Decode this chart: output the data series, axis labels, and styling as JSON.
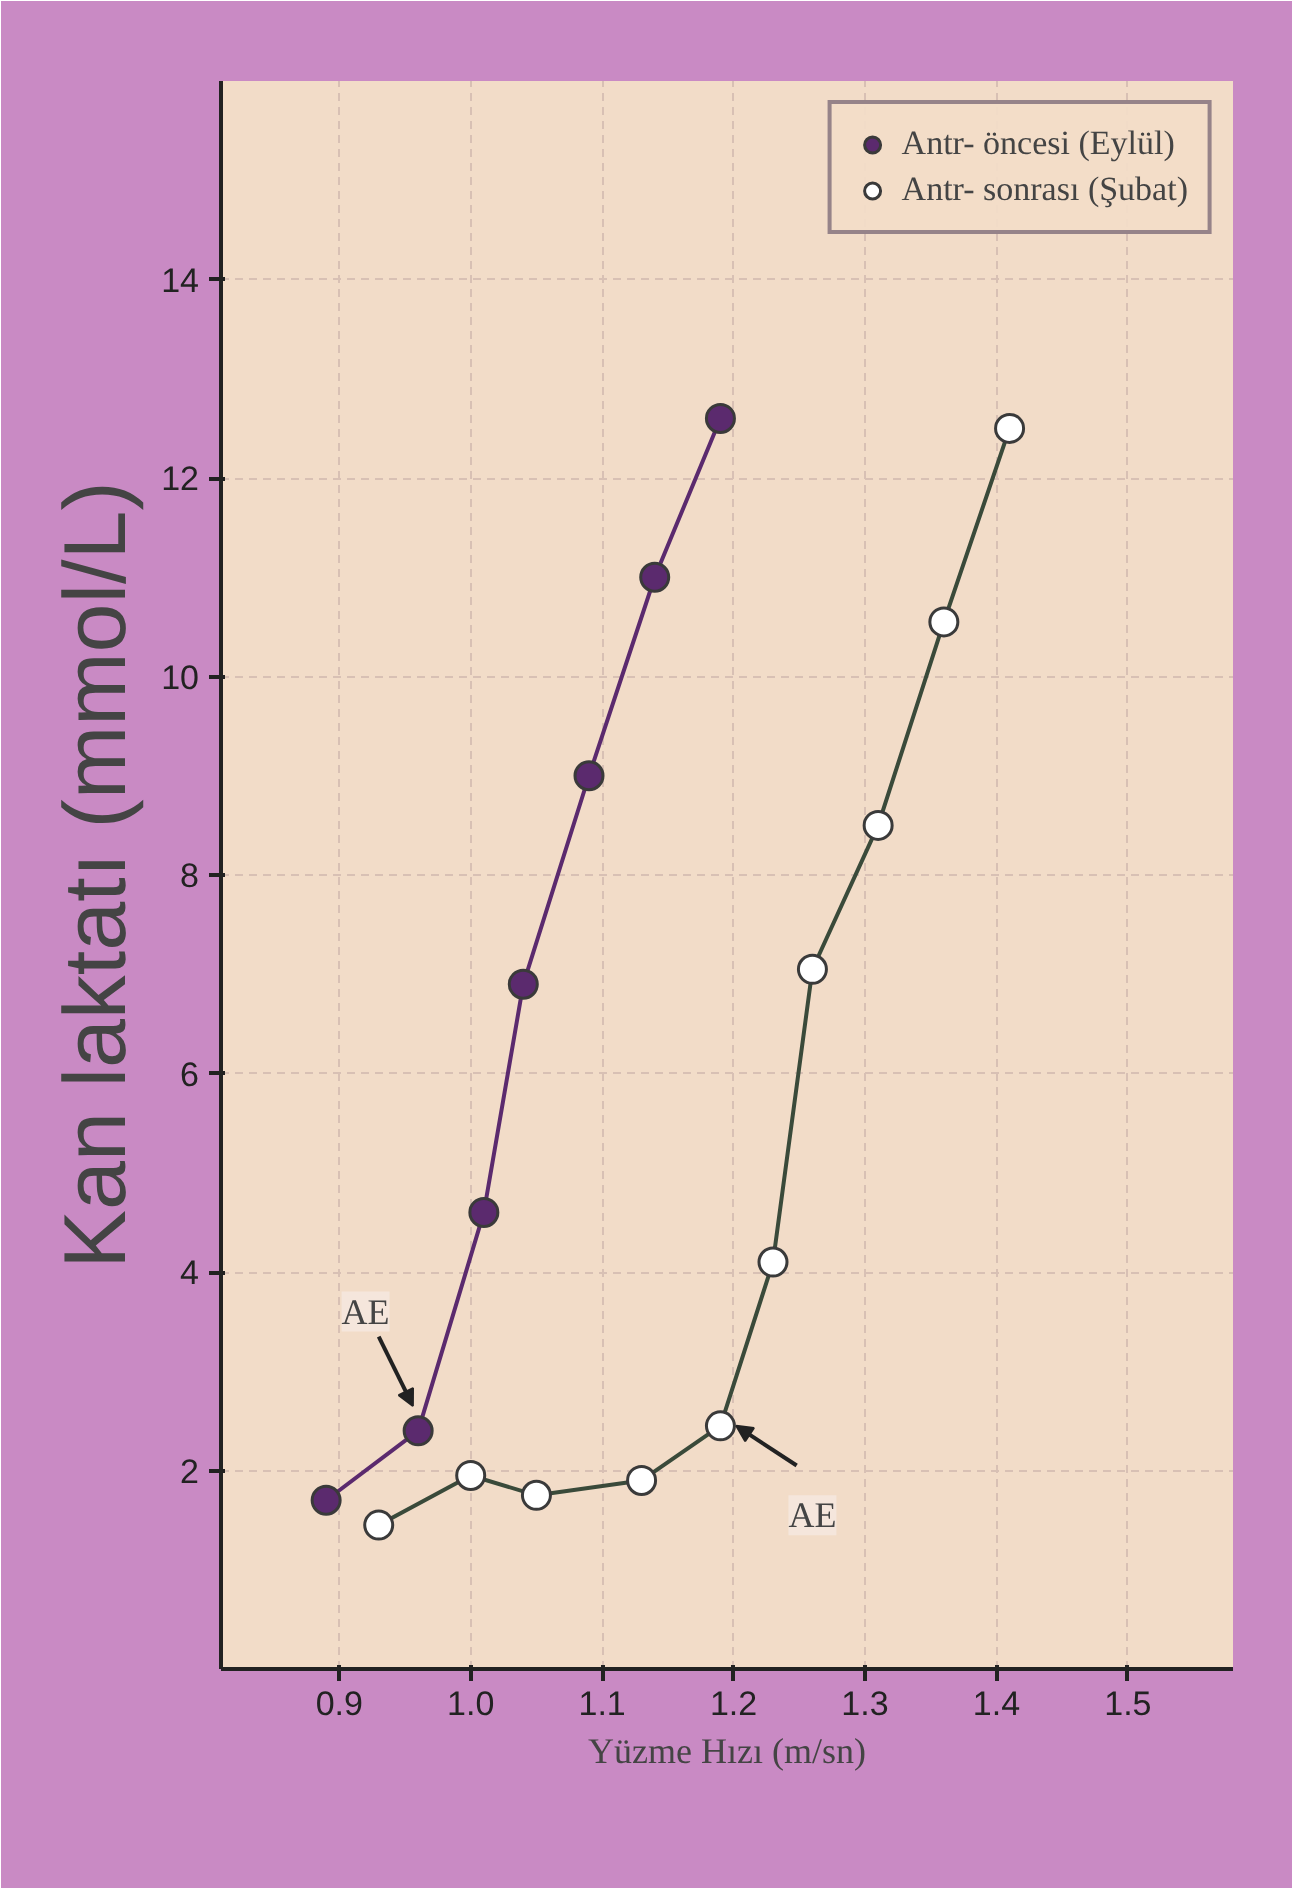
{
  "chart_data": {
    "type": "line",
    "xlabel": "Yüzme Hızı (m/sn)",
    "ylabel": "Kan laktatı (mmol/L)",
    "xlim": [
      0.81,
      1.58
    ],
    "ylim": [
      0,
      16
    ],
    "xticks": [
      0.9,
      {
        "value": 1.0,
        "label": "1.0"
      },
      1.1,
      1.2,
      1.3,
      1.4,
      1.5
    ],
    "yticks": [
      2,
      4,
      6,
      8,
      10,
      12,
      14
    ],
    "marker": "circle",
    "line_style": "solid",
    "grid": true,
    "legend": "top right",
    "series": [
      {
        "name": "Antr- öncesi (Eylül)",
        "color": "#5b2a6e",
        "x": [
          0.89,
          0.96,
          1.01,
          1.04,
          1.09,
          1.14,
          1.19
        ],
        "values": [
          1.7,
          2.4,
          4.6,
          6.9,
          9.0,
          11.0,
          12.6
        ]
      },
      {
        "name": "Antr- sonrası (Şubat)",
        "color": "#ffffff",
        "x": [
          0.93,
          1.0,
          1.05,
          1.13,
          1.19,
          1.23,
          1.26,
          1.31,
          1.36,
          1.41
        ],
        "values": [
          1.45,
          1.95,
          1.75,
          1.9,
          2.45,
          4.1,
          7.05,
          8.5,
          10.55,
          12.5
        ]
      }
    ],
    "annotations": [
      {
        "text": "AE",
        "x": 0.96,
        "y": 2.4
      },
      {
        "text": "AE",
        "x": 1.19,
        "y": 2.45
      }
    ]
  }
}
